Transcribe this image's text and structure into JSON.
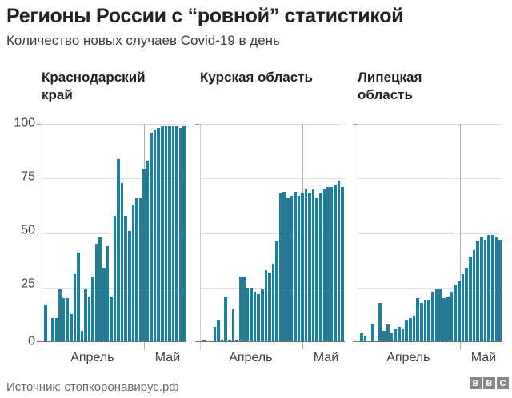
{
  "header": {
    "title": "Регионы России с “ровной” статистикой",
    "subtitle": "Количество новых случаев Covid-19 в день"
  },
  "y_axis": {
    "ticks": [
      "100",
      "75",
      "50",
      "25",
      "0"
    ]
  },
  "colors": {
    "bar": "#1d7f9e",
    "grid": "#e2e2e2",
    "axis": "#6f6f6f",
    "title_text": "#222222"
  },
  "footer": {
    "source": "Источник: стопкоронавирус.рф",
    "logo_letters": [
      "B",
      "B",
      "C"
    ]
  },
  "chart_data": [
    {
      "type": "bar",
      "title": "Краснодарский край",
      "title_lines": [
        "Краснодарский",
        "край"
      ],
      "x_ticks": [
        "Апрель",
        "Май"
      ],
      "ylabel": "",
      "ylim": [
        0,
        100
      ],
      "grid": true,
      "values": [
        17,
        0,
        11,
        11,
        24,
        20,
        20,
        13,
        31,
        41,
        5,
        24,
        21,
        30,
        45,
        48,
        34,
        44,
        21,
        58,
        84,
        73,
        58,
        51,
        63,
        66,
        66,
        79,
        83,
        96,
        97,
        98,
        99,
        99,
        99,
        99,
        99,
        98,
        99
      ]
    },
    {
      "type": "bar",
      "title": "Курская область",
      "title_lines": [
        "Курская область"
      ],
      "x_ticks": [
        "Апрель",
        "Май"
      ],
      "ylabel": "",
      "ylim": [
        0,
        100
      ],
      "grid": true,
      "values": [
        1,
        0,
        0,
        7,
        10,
        1,
        21,
        1,
        15,
        1,
        30,
        30,
        25,
        25,
        23,
        22,
        24,
        33,
        32,
        36,
        46,
        68,
        69,
        66,
        67,
        69,
        67,
        68,
        70,
        68,
        70,
        66,
        68,
        70,
        71,
        71,
        72,
        74,
        71
      ]
    },
    {
      "type": "bar",
      "title": "Липецкая область",
      "title_lines": [
        "Липецкая",
        "область"
      ],
      "x_ticks": [
        "Апрель",
        "Май"
      ],
      "ylabel": "",
      "ylim": [
        0,
        100
      ],
      "grid": true,
      "values": [
        4,
        3,
        0,
        8,
        0,
        18,
        5,
        8,
        4,
        6,
        7,
        6,
        10,
        11,
        12,
        20,
        18,
        19,
        19,
        23,
        24,
        24,
        20,
        21,
        23,
        26,
        28,
        31,
        34,
        39,
        42,
        46,
        48,
        47,
        49,
        49,
        48,
        47
      ]
    }
  ]
}
